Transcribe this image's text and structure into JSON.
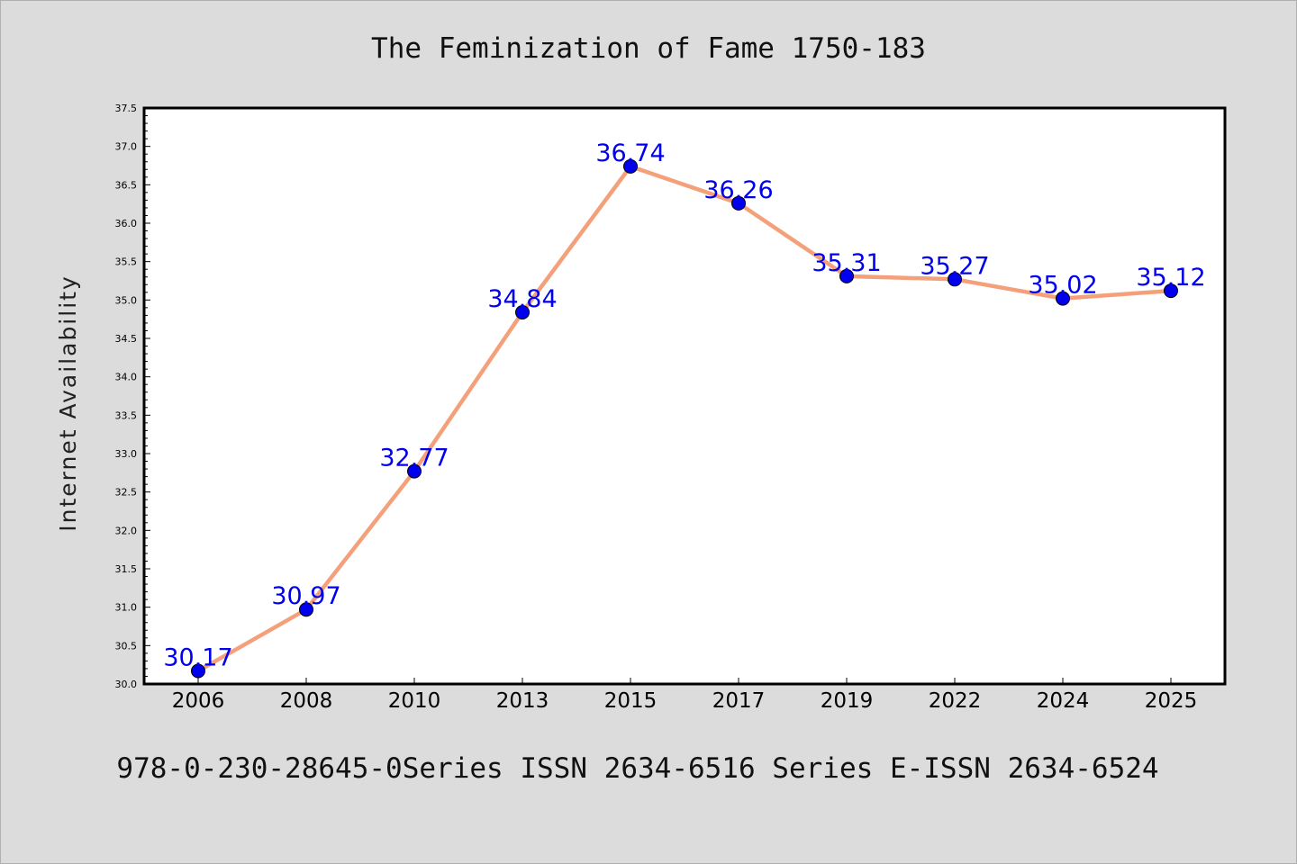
{
  "chart_data": {
    "type": "line",
    "title": "The Feminization of Fame 1750-183",
    "caption": "978-0-230-28645-0Series ISSN 2634-6516 Series E-ISSN 2634-6524",
    "xlabel": "",
    "ylabel": "Internet Availability",
    "categories": [
      "2006",
      "2008",
      "2010",
      "2013",
      "2015",
      "2017",
      "2019",
      "2022",
      "2024",
      "2025"
    ],
    "values": [
      30.17,
      30.97,
      32.77,
      34.84,
      36.74,
      36.26,
      35.31,
      35.27,
      35.02,
      35.12
    ],
    "data_labels": [
      "30.17",
      "30.97",
      "32.77",
      "34.84",
      "36.74",
      "36.26",
      "35.31",
      "35.27",
      "35.02",
      "35.12"
    ],
    "ylim": [
      30.0,
      37.5
    ],
    "yticks": [
      "30.0",
      "30.5",
      "31.0",
      "31.5",
      "32.0",
      "32.5",
      "33.0",
      "33.5",
      "34.0",
      "34.5",
      "35.0",
      "35.5",
      "36.0",
      "36.5",
      "37.0",
      "37.5"
    ],
    "grid": false,
    "legend": "none",
    "line_color": "#f4a07a",
    "marker_color": "#0000ee",
    "label_color": "#0000ee"
  }
}
